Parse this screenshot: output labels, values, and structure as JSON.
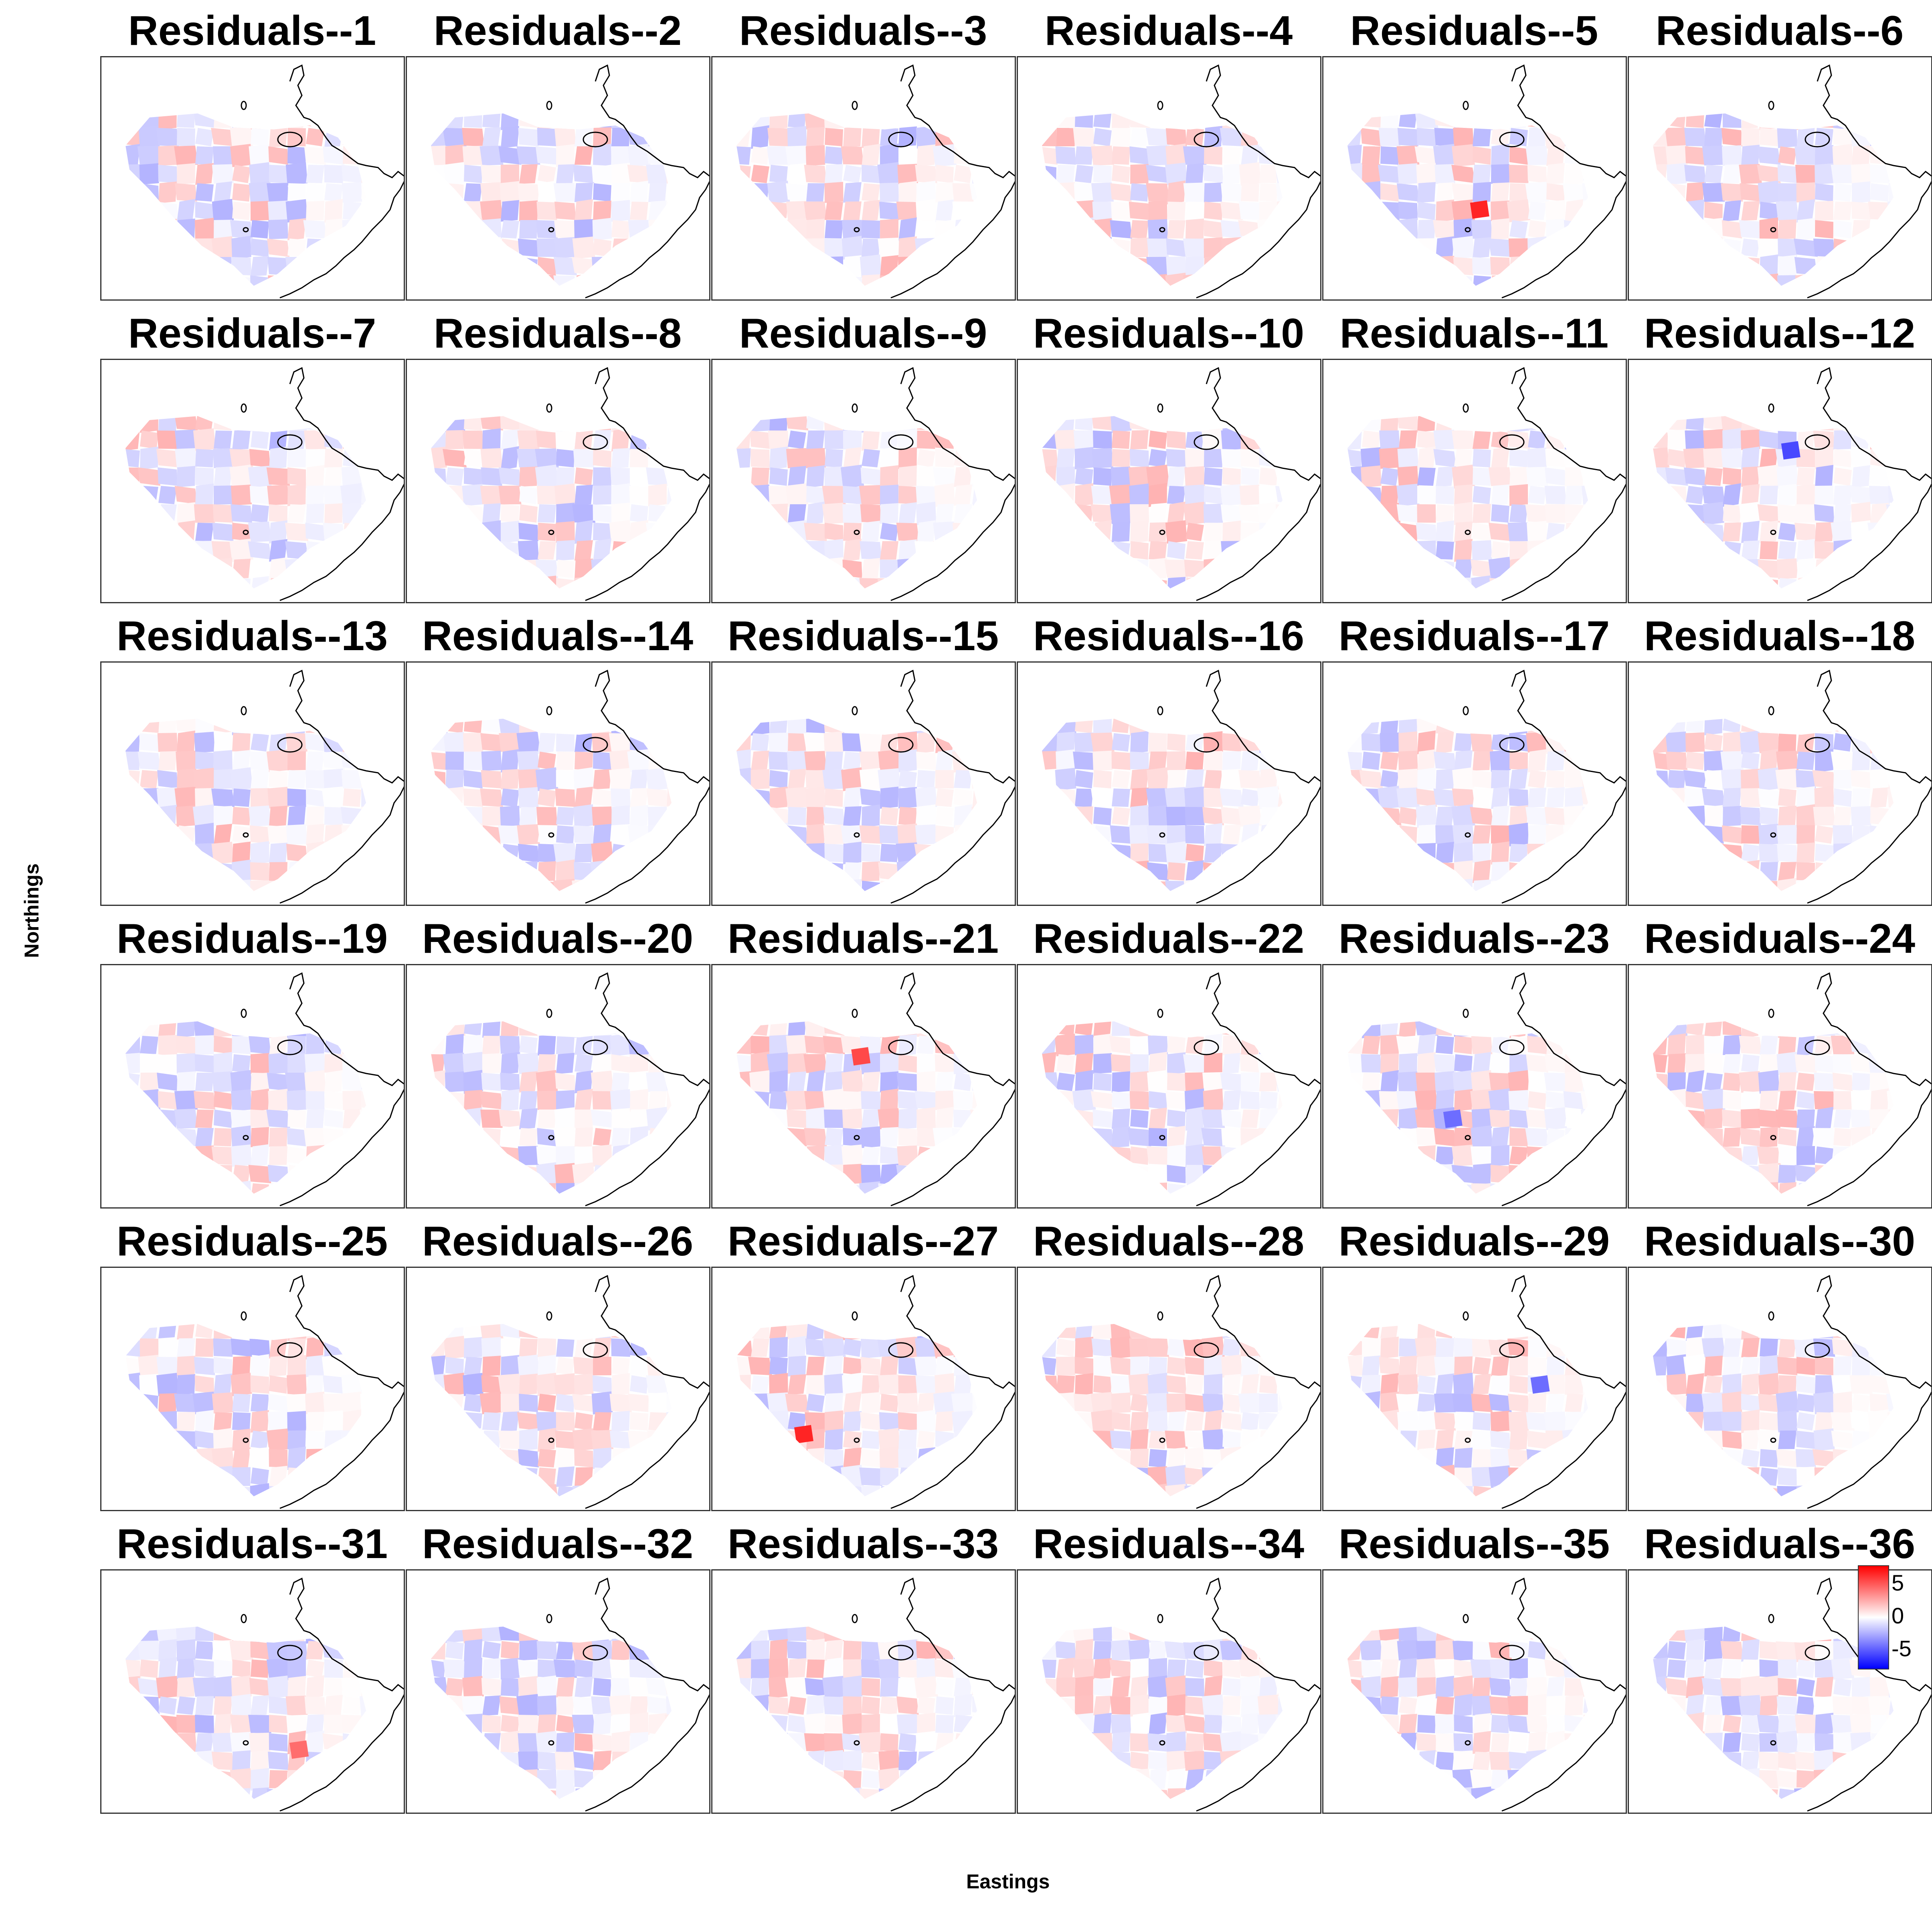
{
  "chart_data": {
    "type": "heatmap",
    "layout": "small-multiples grid, 6 columns x 6 rows",
    "xlabel": "Eastings",
    "ylabel": "Northings",
    "panel_titles": [
      "Residuals--1",
      "Residuals--2",
      "Residuals--3",
      "Residuals--4",
      "Residuals--5",
      "Residuals--6",
      "Residuals--7",
      "Residuals--8",
      "Residuals--9",
      "Residuals--10",
      "Residuals--11",
      "Residuals--12",
      "Residuals--13",
      "Residuals--14",
      "Residuals--15",
      "Residuals--16",
      "Residuals--17",
      "Residuals--18",
      "Residuals--19",
      "Residuals--20",
      "Residuals--21",
      "Residuals--22",
      "Residuals--23",
      "Residuals--24",
      "Residuals--25",
      "Residuals--26",
      "Residuals--27",
      "Residuals--28",
      "Residuals--29",
      "Residuals--30",
      "Residuals--31",
      "Residuals--32",
      "Residuals--33",
      "Residuals--34",
      "Residuals--35",
      "Residuals--36"
    ],
    "colorbar": {
      "ticks": [
        "5",
        "0",
        "-5"
      ],
      "range": [
        -7,
        7
      ],
      "colors": {
        "low": "#0000ff",
        "mid": "#ffffff",
        "high": "#ff0000"
      },
      "position": "bottom-right panel, top-right corner"
    },
    "notable_extremes": [
      {
        "panel": "Residuals--5",
        "sign": "positive",
        "approx_value": 6
      },
      {
        "panel": "Residuals--12",
        "sign": "negative",
        "approx_value": -5
      },
      {
        "panel": "Residuals--21",
        "sign": "positive",
        "approx_value": 5
      },
      {
        "panel": "Residuals--23",
        "sign": "negative",
        "approx_value": -4
      },
      {
        "panel": "Residuals--27",
        "sign": "positive",
        "approx_value": 6
      },
      {
        "panel": "Residuals--29",
        "sign": "negative",
        "approx_value": -4
      },
      {
        "panel": "Residuals--31",
        "sign": "positive",
        "approx_value": 4
      }
    ],
    "grid": false,
    "map_outline": "coastline drawn in black in the upper-right of each panel"
  }
}
